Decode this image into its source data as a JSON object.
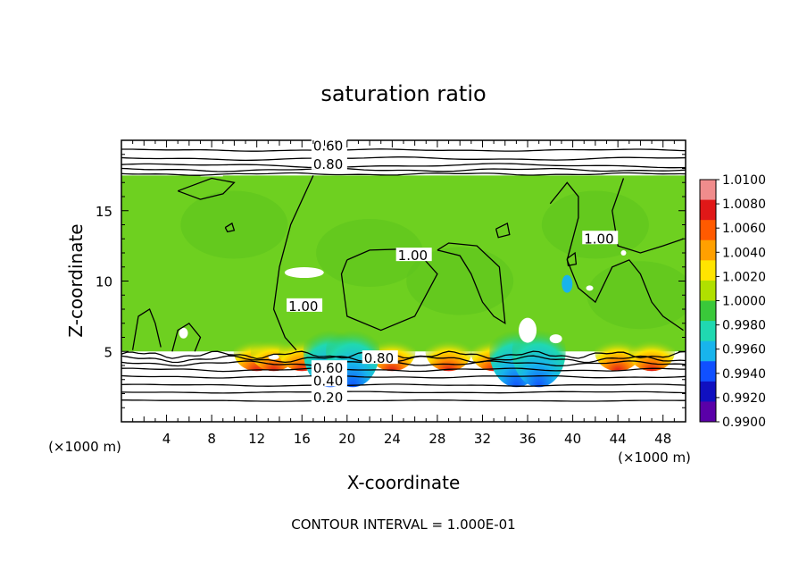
{
  "chart_data": {
    "type": "heatmap",
    "title": "saturation ratio",
    "xlabel": "X-coordinate",
    "ylabel": "Z-coordinate",
    "x_unit": "(×1000 m)",
    "xlim": [
      0,
      50
    ],
    "ylim": [
      0,
      20
    ],
    "x_ticks": [
      4,
      8,
      12,
      16,
      20,
      24,
      28,
      32,
      36,
      40,
      44,
      48
    ],
    "y_ticks": [
      5,
      10,
      15
    ],
    "contour_interval_label": "CONTOUR INTERVAL = 1.000E-01",
    "contour_labels": [
      {
        "text": "0.60",
        "x": 17.0,
        "z": 19.6
      },
      {
        "text": "0.80",
        "x": 17.0,
        "z": 18.3
      },
      {
        "text": "1.00",
        "x": 24.5,
        "z": 11.8
      },
      {
        "text": "1.00",
        "x": 14.8,
        "z": 8.2
      },
      {
        "text": "1.00",
        "x": 41.0,
        "z": 13.0
      },
      {
        "text": "0.80",
        "x": 21.5,
        "z": 4.5
      },
      {
        "text": "0.60",
        "x": 17.0,
        "z": 3.8
      },
      {
        "text": "0.40",
        "x": 17.0,
        "z": 2.9
      },
      {
        "text": "0.20",
        "x": 17.0,
        "z": 1.7
      }
    ],
    "colorbar": {
      "ticks": [
        "1.0100",
        "1.0080",
        "1.0060",
        "1.0040",
        "1.0020",
        "1.0000",
        "0.9980",
        "0.9960",
        "0.9940",
        "0.9920",
        "0.9900"
      ],
      "colors": [
        "#f08c8c",
        "#e01818",
        "#ff5a00",
        "#ffa000",
        "#ffe400",
        "#b0e000",
        "#3ac83a",
        "#20d8b0",
        "#18b4ec",
        "#1050ff",
        "#1010c0",
        "#5a00a8"
      ]
    },
    "regions": {
      "cloud_base_z": 5.0,
      "cloud_top_z": 17.5,
      "background_value": 1.0
    }
  }
}
